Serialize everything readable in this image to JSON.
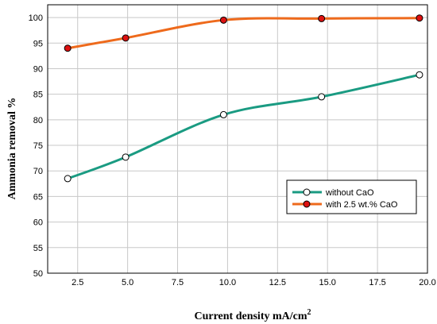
{
  "chart_data": {
    "type": "line",
    "xlabel": "Current density mA/cm",
    "xlabel_superscript": "2",
    "ylabel": "Ammonia removal %",
    "xlim": [
      1.0,
      20.0
    ],
    "ylim": [
      50,
      102.5
    ],
    "xticks": [
      "2.5",
      "5.0",
      "7.5",
      "10.0",
      "12.5",
      "15.0",
      "17.5",
      "20.0"
    ],
    "yticks": [
      "50",
      "55",
      "60",
      "65",
      "70",
      "75",
      "80",
      "85",
      "90",
      "95",
      "100"
    ],
    "grid": true,
    "legend_position": "right",
    "series": [
      {
        "name": "without CaO",
        "color": "#1a9b82",
        "marker_fill": "#ffffff",
        "x": [
          2.0,
          4.9,
          9.8,
          14.7,
          19.6
        ],
        "y": [
          68.5,
          72.7,
          81.0,
          84.5,
          88.8
        ]
      },
      {
        "name": "with 2.5 wt.% CaO",
        "color": "#ee6a1c",
        "marker_fill": "#dd1111",
        "x": [
          2.0,
          4.9,
          9.8,
          14.7,
          19.6
        ],
        "y": [
          94.0,
          96.0,
          99.5,
          99.8,
          99.9
        ]
      }
    ]
  }
}
